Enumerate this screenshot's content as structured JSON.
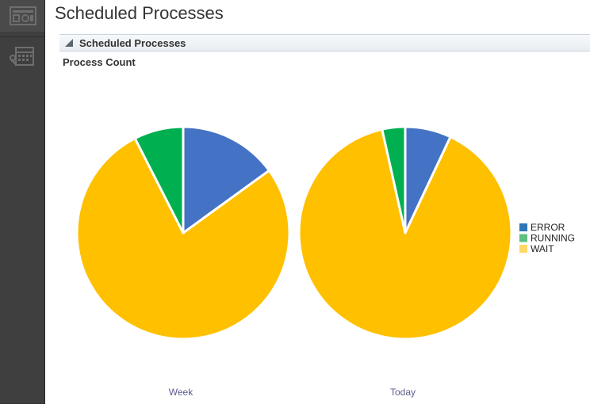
{
  "page": {
    "title": "Scheduled Processes"
  },
  "sidebar": {
    "items": [
      {
        "icon": "dashboard-icon"
      },
      {
        "icon": "scheduled-tasks-icon"
      }
    ]
  },
  "panel": {
    "title": "Scheduled Processes",
    "chart_title": "Process Count"
  },
  "colors": {
    "error": "#4472c4",
    "running": "#00b050",
    "wait": "#ffc000",
    "legend_error": "#2e75b6",
    "legend_running": "#5fbf7f",
    "legend_wait": "#ffd966",
    "pie_label": "#5b5b8f"
  },
  "chart_data": {
    "type": "pie",
    "title": "Process Count",
    "legend_position": "right",
    "legend": [
      "ERROR",
      "RUNNING",
      "WAIT"
    ],
    "charts": [
      {
        "label": "Week",
        "slices": [
          {
            "name": "ERROR",
            "value": 15
          },
          {
            "name": "WAIT",
            "value": 77.5
          },
          {
            "name": "RUNNING",
            "value": 7.5
          }
        ]
      },
      {
        "label": "Today",
        "slices": [
          {
            "name": "ERROR",
            "value": 7
          },
          {
            "name": "WAIT",
            "value": 89.5
          },
          {
            "name": "RUNNING",
            "value": 3.5
          }
        ]
      }
    ]
  }
}
